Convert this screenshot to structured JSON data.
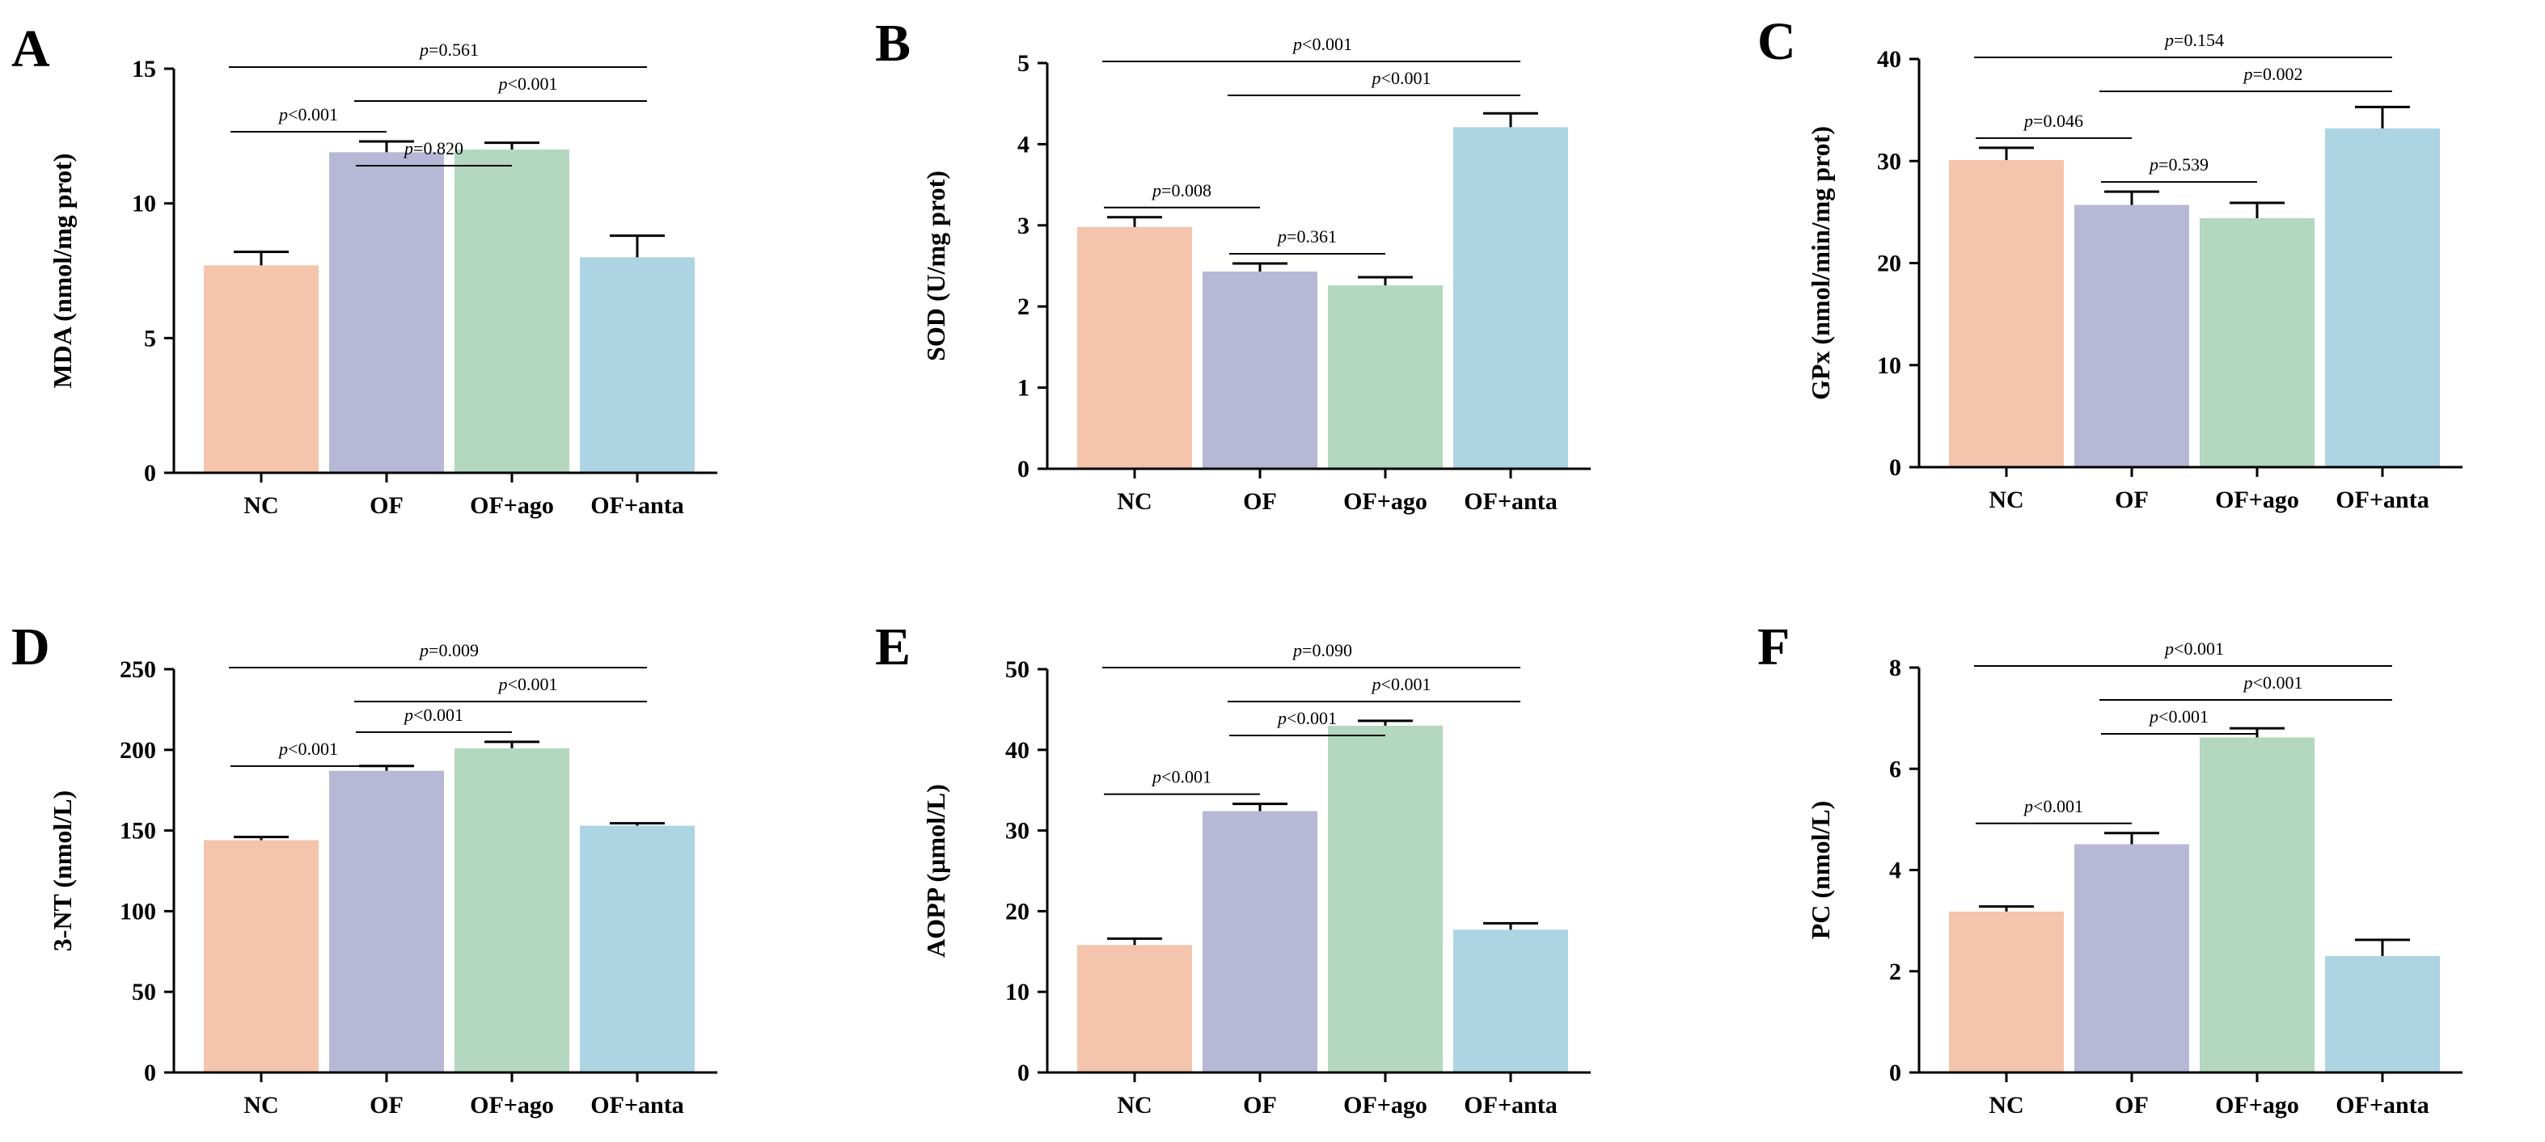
{
  "figure": {
    "colors": {
      "NC": "#F4C4AC",
      "OF": "#B7B7D6",
      "OF+ago": "#B4D7BF",
      "OF+anta": "#ADD4E2",
      "axis": "#000000"
    }
  },
  "chart_data": [
    {
      "panel": "A",
      "type": "bar",
      "ylabel": "MDA (nmol/mg prot)",
      "categories": [
        "NC",
        "OF",
        "OF+ago",
        "OF+anta"
      ],
      "values": [
        7.7,
        11.9,
        12.0,
        8.0
      ],
      "errors": [
        0.5,
        0.4,
        0.25,
        0.8
      ],
      "ylim": [
        0,
        15
      ],
      "yticks": [
        0,
        5,
        10,
        15
      ],
      "comparisons": [
        {
          "from": 0,
          "to": 3,
          "label": "p=0.561"
        },
        {
          "from": 1,
          "to": 3,
          "label": "p<0.001"
        },
        {
          "from": 0,
          "to": 1,
          "label": "p<0.001"
        },
        {
          "from": 1,
          "to": 2,
          "label": "p=0.820"
        }
      ]
    },
    {
      "panel": "B",
      "type": "bar",
      "ylabel": "SOD (U/mg prot)",
      "categories": [
        "NC",
        "OF",
        "OF+ago",
        "OF+anta"
      ],
      "values": [
        2.98,
        2.43,
        2.26,
        4.21
      ],
      "errors": [
        0.12,
        0.1,
        0.1,
        0.17
      ],
      "ylim": [
        0,
        5
      ],
      "yticks": [
        0,
        1,
        2,
        3,
        4,
        5
      ],
      "comparisons": [
        {
          "from": 0,
          "to": 3,
          "label": "p<0.001"
        },
        {
          "from": 1,
          "to": 3,
          "label": "p<0.001"
        },
        {
          "from": 0,
          "to": 1,
          "label": "p=0.008"
        },
        {
          "from": 1,
          "to": 2,
          "label": "p=0.361"
        }
      ]
    },
    {
      "panel": "C",
      "type": "bar",
      "ylabel": "GPx (nmol/min/mg prot)",
      "categories": [
        "NC",
        "OF",
        "OF+ago",
        "OF+anta"
      ],
      "values": [
        30.1,
        25.7,
        24.4,
        33.2
      ],
      "errors": [
        1.2,
        1.3,
        1.5,
        2.1
      ],
      "ylim": [
        0,
        40
      ],
      "yticks": [
        0,
        10,
        20,
        30,
        40
      ],
      "comparisons": [
        {
          "from": 0,
          "to": 3,
          "label": "p=0.154"
        },
        {
          "from": 1,
          "to": 3,
          "label": "p=0.002"
        },
        {
          "from": 0,
          "to": 1,
          "label": "p=0.046"
        },
        {
          "from": 1,
          "to": 2,
          "label": "p=0.539"
        }
      ]
    },
    {
      "panel": "D",
      "type": "bar",
      "ylabel": "3-NT (nmol/L)",
      "categories": [
        "NC",
        "OF",
        "OF+ago",
        "OF+anta"
      ],
      "values": [
        144,
        187,
        201,
        153
      ],
      "errors": [
        2,
        3,
        4,
        1.5
      ],
      "ylim": [
        0,
        250
      ],
      "yticks": [
        0,
        50,
        100,
        150,
        200,
        250
      ],
      "comparisons": [
        {
          "from": 0,
          "to": 3,
          "label": "p=0.009"
        },
        {
          "from": 1,
          "to": 3,
          "label": "p<0.001"
        },
        {
          "from": 1,
          "to": 2,
          "label": "p<0.001"
        },
        {
          "from": 0,
          "to": 1,
          "label": "p<0.001"
        }
      ]
    },
    {
      "panel": "E",
      "type": "bar",
      "ylabel": "AOPP (µmol/L)",
      "categories": [
        "NC",
        "OF",
        "OF+ago",
        "OF+anta"
      ],
      "values": [
        15.8,
        32.4,
        43.0,
        17.7
      ],
      "errors": [
        0.8,
        0.9,
        0.6,
        0.8
      ],
      "ylim": [
        0,
        50
      ],
      "yticks": [
        0,
        10,
        20,
        30,
        40,
        50
      ],
      "comparisons": [
        {
          "from": 0,
          "to": 3,
          "label": "p=0.090"
        },
        {
          "from": 1,
          "to": 3,
          "label": "p<0.001"
        },
        {
          "from": 1,
          "to": 2,
          "label": "p<0.001"
        },
        {
          "from": 0,
          "to": 1,
          "label": "p<0.001"
        }
      ]
    },
    {
      "panel": "F",
      "type": "bar",
      "ylabel": "PC (nmol/L)",
      "categories": [
        "NC",
        "OF",
        "OF+ago",
        "OF+anta"
      ],
      "values": [
        3.18,
        4.51,
        6.62,
        2.3
      ],
      "errors": [
        0.1,
        0.22,
        0.18,
        0.32
      ],
      "ylim": [
        0,
        8
      ],
      "yticks": [
        0,
        2,
        4,
        6,
        8
      ],
      "comparisons": [
        {
          "from": 0,
          "to": 3,
          "label": "p<0.001"
        },
        {
          "from": 1,
          "to": 3,
          "label": "p<0.001"
        },
        {
          "from": 1,
          "to": 2,
          "label": "p<0.001"
        },
        {
          "from": 0,
          "to": 1,
          "label": "p<0.001"
        }
      ]
    }
  ]
}
